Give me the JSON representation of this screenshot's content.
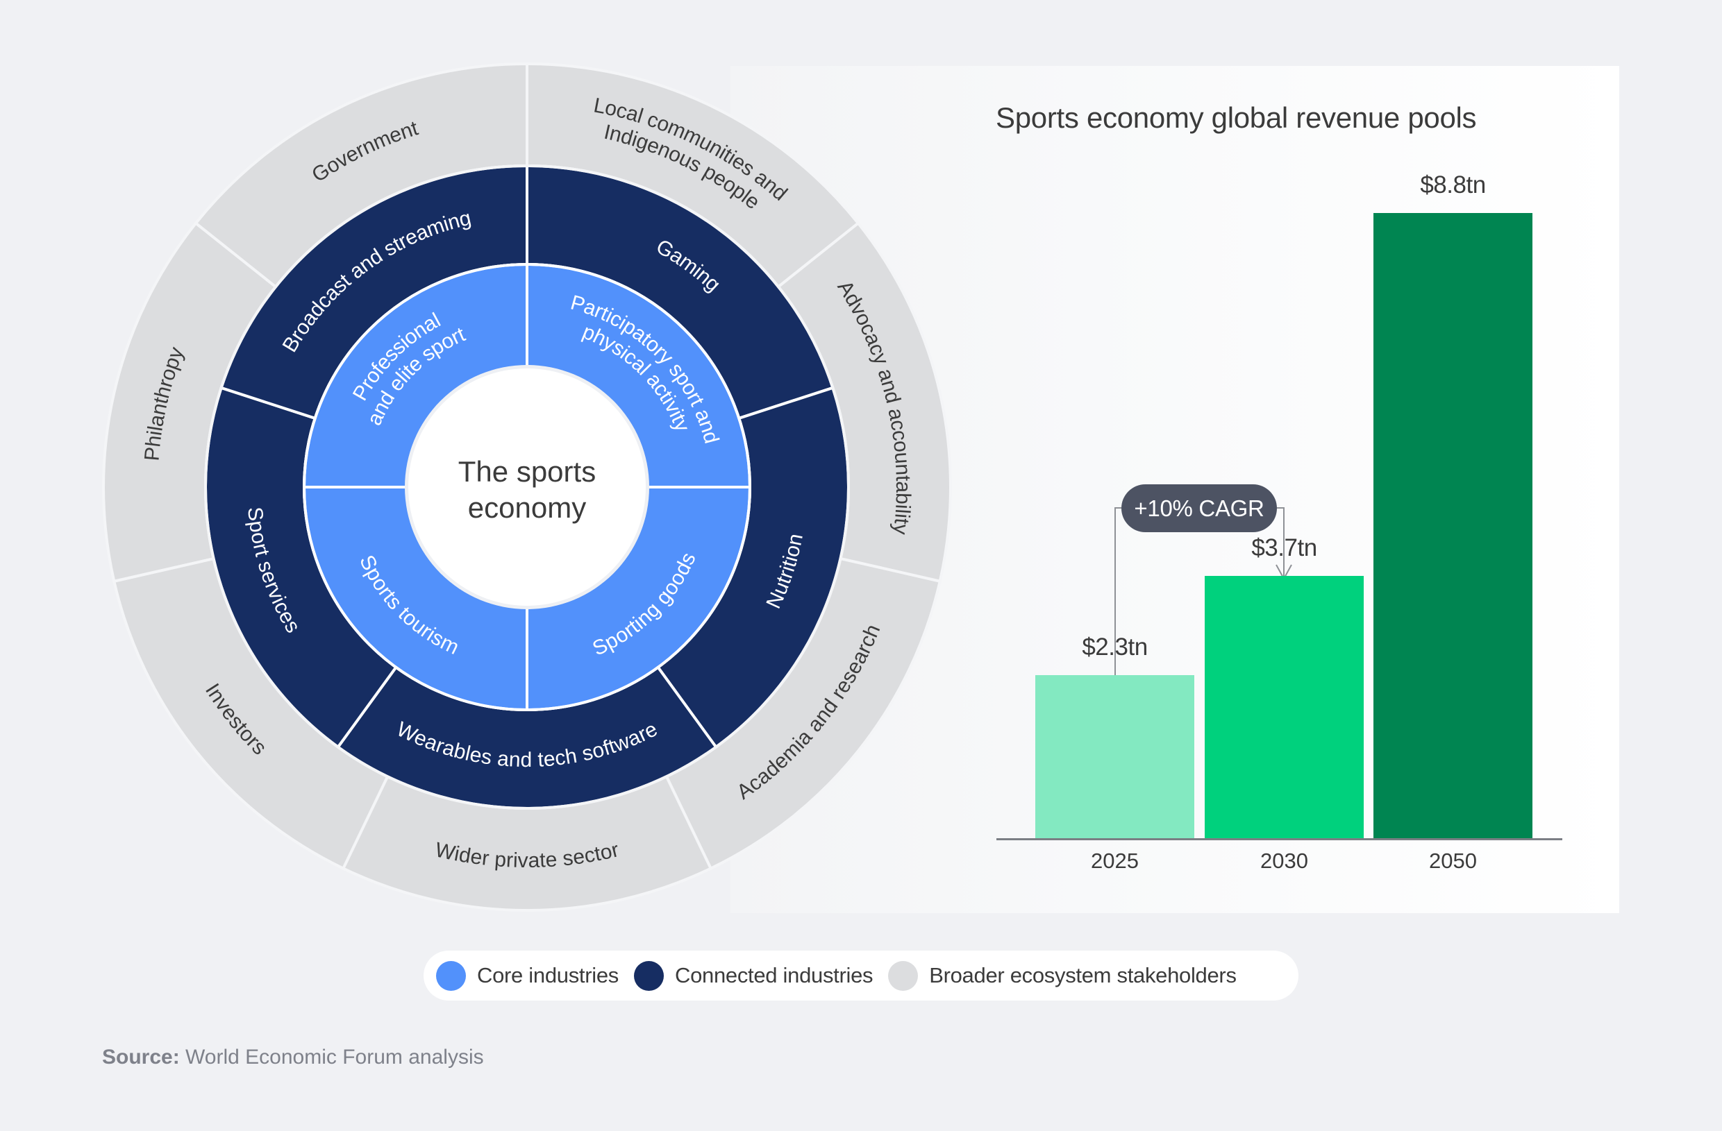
{
  "colors": {
    "background": "#f0f1f4",
    "core": "#5291fb",
    "connected": "#162d62",
    "broader": "#dcdddf",
    "bar_2025": "#83e9c1",
    "bar_2030": "#00d17d",
    "bar_2050": "#008551",
    "cagr_pill": "#4d5363"
  },
  "wheel": {
    "center_label_line1": "The sports",
    "center_label_line2": "economy",
    "core": [
      {
        "lines": [
          "Professional",
          "and elite sport"
        ]
      },
      {
        "lines": [
          "Participatory sport and",
          "physical activity"
        ]
      },
      {
        "lines": [
          "Sporting goods"
        ]
      },
      {
        "lines": [
          "Sports tourism"
        ]
      }
    ],
    "connected": [
      {
        "label": "Gaming"
      },
      {
        "label": "Nutrition"
      },
      {
        "label": "Wearables and tech software"
      },
      {
        "label": "Sport services"
      },
      {
        "label": "Broadcast and streaming"
      }
    ],
    "broader": [
      {
        "lines": [
          "Local communities and",
          "Indigenous people"
        ]
      },
      {
        "lines": [
          "Advocacy and accountability"
        ]
      },
      {
        "lines": [
          "Academia and research"
        ]
      },
      {
        "lines": [
          "Wider private sector"
        ]
      },
      {
        "lines": [
          "Investors"
        ]
      },
      {
        "lines": [
          "Philanthropy"
        ]
      },
      {
        "lines": [
          "Government"
        ]
      }
    ]
  },
  "chart_data": {
    "type": "bar",
    "title": "Sports economy global revenue pools",
    "categories": [
      "2025",
      "2030",
      "2050"
    ],
    "values": [
      2.3,
      3.7,
      8.8
    ],
    "value_labels": [
      "$2.3tn",
      "$3.7tn",
      "$8.8tn"
    ],
    "unit": "USD trillion",
    "xlabel": "",
    "ylabel": "",
    "ylim": [
      0,
      8.8
    ],
    "grid": false,
    "annotation": {
      "text": "+10% CAGR",
      "from": "2025",
      "to": "2030"
    },
    "colors": [
      "#83e9c1",
      "#00d17d",
      "#008551"
    ]
  },
  "legend": {
    "items": [
      {
        "label": "Core industries",
        "color": "#5291fb"
      },
      {
        "label": "Connected industries",
        "color": "#162d62"
      },
      {
        "label": "Broader ecosystem stakeholders",
        "color": "#dcdddf"
      }
    ]
  },
  "source": {
    "label": "Source:",
    "text": " World Economic Forum analysis"
  }
}
